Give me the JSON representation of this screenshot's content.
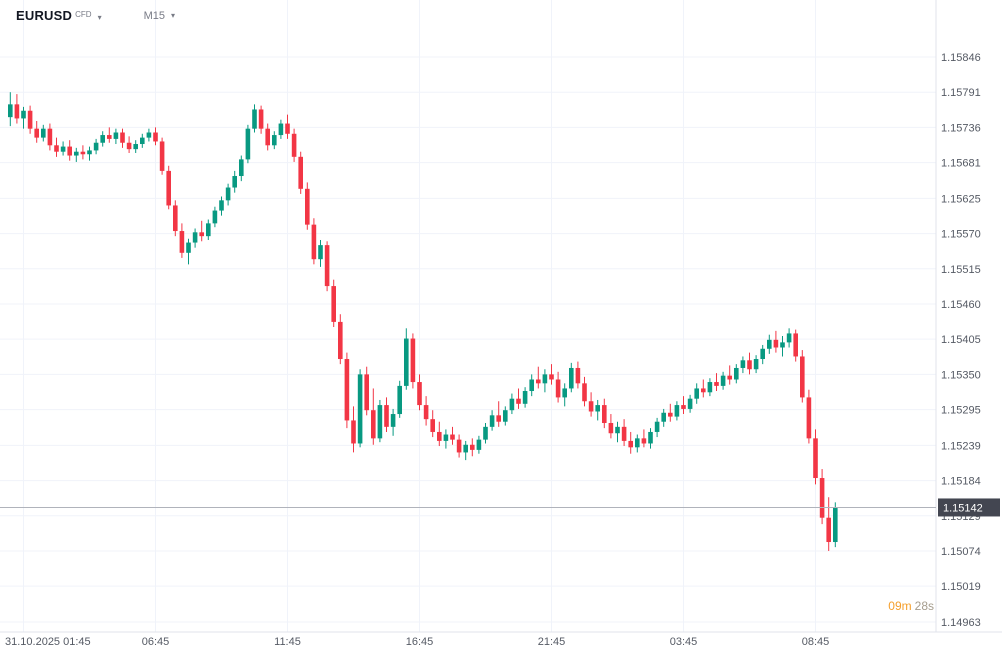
{
  "symbol_bar": {
    "symbol": "EURUSD",
    "instrument_type": "CFD",
    "timeframe": "M15"
  },
  "last_price": {
    "value": "1.15142",
    "badge_color": "#434651"
  },
  "countdown": {
    "minutes": "09m",
    "seconds": "28s"
  },
  "colors": {
    "up": "#089981",
    "down": "#f23645",
    "grid": "#f0f3fa",
    "axis_text": "#555a64",
    "axis_border": "#e0e3eb",
    "price_line": "#b0b3bb",
    "badge_text": "#ffffff"
  },
  "chart_data": {
    "type": "candlestick",
    "title": "EURUSD CFD M15",
    "symbol": "EURUSD",
    "interval": "M15",
    "grid": true,
    "price_range": [
      1.14963,
      1.15846
    ],
    "last_price": 1.15142,
    "y_ticks": [
      1.15846,
      1.15791,
      1.15736,
      1.15681,
      1.15625,
      1.1557,
      1.15515,
      1.1546,
      1.15405,
      1.1535,
      1.15295,
      1.15239,
      1.15184,
      1.15129,
      1.15074,
      1.15019,
      1.14963
    ],
    "y_tick_labels": [
      "1.15846",
      "1.15791",
      "1.15736",
      "1.15681",
      "1.15625",
      "1.15570",
      "1.15515",
      "1.15460",
      "1.15405",
      "1.15350",
      "1.15295",
      "1.15239",
      "1.15184",
      "1.15129",
      "1.15074",
      "1.15019",
      "1.14963"
    ],
    "x_tick_indices": [
      2,
      22,
      42,
      62,
      82,
      102,
      122
    ],
    "x_tick_labels": [
      "31.10.2025 01:45",
      "06:45",
      "11:45",
      "16:45",
      "21:45",
      "03:45",
      "08:45"
    ],
    "candles": [
      [
        1.15752,
        1.15791,
        1.15738,
        1.15772
      ],
      [
        1.15772,
        1.15788,
        1.15742,
        1.1575
      ],
      [
        1.1575,
        1.15768,
        1.15734,
        1.15762
      ],
      [
        1.15762,
        1.1577,
        1.15726,
        1.15734
      ],
      [
        1.15734,
        1.15746,
        1.15712,
        1.1572
      ],
      [
        1.1572,
        1.1574,
        1.15714,
        1.15734
      ],
      [
        1.15734,
        1.15742,
        1.157,
        1.15708
      ],
      [
        1.15708,
        1.1572,
        1.1569,
        1.15698
      ],
      [
        1.15698,
        1.15714,
        1.15692,
        1.15706
      ],
      [
        1.15706,
        1.15716,
        1.15684,
        1.15692
      ],
      [
        1.15692,
        1.15704,
        1.15682,
        1.15698
      ],
      [
        1.15698,
        1.15708,
        1.15686,
        1.15694
      ],
      [
        1.15694,
        1.15706,
        1.15684,
        1.157
      ],
      [
        1.157,
        1.15718,
        1.15694,
        1.15712
      ],
      [
        1.15712,
        1.1573,
        1.15706,
        1.15724
      ],
      [
        1.15724,
        1.15736,
        1.15712,
        1.15718
      ],
      [
        1.15718,
        1.15734,
        1.1571,
        1.15728
      ],
      [
        1.15728,
        1.15734,
        1.15704,
        1.15712
      ],
      [
        1.15712,
        1.15722,
        1.15696,
        1.15702
      ],
      [
        1.15702,
        1.15716,
        1.15696,
        1.1571
      ],
      [
        1.1571,
        1.15726,
        1.15704,
        1.1572
      ],
      [
        1.1572,
        1.15734,
        1.15714,
        1.15728
      ],
      [
        1.15728,
        1.15736,
        1.15708,
        1.15714
      ],
      [
        1.15714,
        1.1572,
        1.15662,
        1.15668
      ],
      [
        1.15668,
        1.15676,
        1.15608,
        1.15614
      ],
      [
        1.15614,
        1.15622,
        1.15566,
        1.15574
      ],
      [
        1.15574,
        1.15586,
        1.15532,
        1.1554
      ],
      [
        1.1554,
        1.15562,
        1.15522,
        1.15556
      ],
      [
        1.15556,
        1.15578,
        1.15548,
        1.15572
      ],
      [
        1.15572,
        1.1559,
        1.15558,
        1.15566
      ],
      [
        1.15566,
        1.15592,
        1.1556,
        1.15586
      ],
      [
        1.15586,
        1.15612,
        1.1558,
        1.15606
      ],
      [
        1.15606,
        1.15628,
        1.15598,
        1.15622
      ],
      [
        1.15622,
        1.15648,
        1.15614,
        1.15642
      ],
      [
        1.15642,
        1.15668,
        1.15634,
        1.1566
      ],
      [
        1.1566,
        1.15692,
        1.15652,
        1.15686
      ],
      [
        1.15686,
        1.1574,
        1.1568,
        1.15734
      ],
      [
        1.15734,
        1.15772,
        1.15728,
        1.15764
      ],
      [
        1.15764,
        1.1577,
        1.15726,
        1.15734
      ],
      [
        1.15734,
        1.15742,
        1.157,
        1.15708
      ],
      [
        1.15708,
        1.1573,
        1.15702,
        1.15724
      ],
      [
        1.15724,
        1.15748,
        1.15718,
        1.15742
      ],
      [
        1.15742,
        1.15756,
        1.15718,
        1.15726
      ],
      [
        1.15726,
        1.15734,
        1.15682,
        1.1569
      ],
      [
        1.1569,
        1.15698,
        1.15632,
        1.1564
      ],
      [
        1.1564,
        1.1565,
        1.15576,
        1.15584
      ],
      [
        1.15584,
        1.15594,
        1.15522,
        1.1553
      ],
      [
        1.1553,
        1.1556,
        1.15518,
        1.15552
      ],
      [
        1.15552,
        1.15558,
        1.1548,
        1.15488
      ],
      [
        1.15488,
        1.15498,
        1.15424,
        1.15432
      ],
      [
        1.15432,
        1.15444,
        1.15366,
        1.15374
      ],
      [
        1.15374,
        1.15384,
        1.15266,
        1.15278
      ],
      [
        1.15278,
        1.153,
        1.15228,
        1.15242
      ],
      [
        1.15242,
        1.15358,
        1.15236,
        1.1535
      ],
      [
        1.1535,
        1.15362,
        1.15286,
        1.15294
      ],
      [
        1.15294,
        1.15328,
        1.1524,
        1.1525
      ],
      [
        1.1525,
        1.1531,
        1.15244,
        1.15302
      ],
      [
        1.15302,
        1.15314,
        1.1526,
        1.15268
      ],
      [
        1.15268,
        1.15296,
        1.15254,
        1.15288
      ],
      [
        1.15288,
        1.1534,
        1.15282,
        1.15332
      ],
      [
        1.15332,
        1.15422,
        1.15326,
        1.15406
      ],
      [
        1.15406,
        1.15414,
        1.15328,
        1.15338
      ],
      [
        1.15338,
        1.1535,
        1.15294,
        1.15302
      ],
      [
        1.15302,
        1.15316,
        1.1527,
        1.1528
      ],
      [
        1.1528,
        1.15294,
        1.15252,
        1.1526
      ],
      [
        1.1526,
        1.15276,
        1.15238,
        1.15246
      ],
      [
        1.15246,
        1.15264,
        1.15234,
        1.15256
      ],
      [
        1.15256,
        1.15268,
        1.1524,
        1.15248
      ],
      [
        1.15248,
        1.15256,
        1.1522,
        1.15228
      ],
      [
        1.15228,
        1.15246,
        1.15216,
        1.1524
      ],
      [
        1.1524,
        1.1525,
        1.15222,
        1.15232
      ],
      [
        1.15232,
        1.15254,
        1.15226,
        1.15248
      ],
      [
        1.15248,
        1.15274,
        1.15242,
        1.15268
      ],
      [
        1.15268,
        1.15294,
        1.15262,
        1.15286
      ],
      [
        1.15286,
        1.15308,
        1.15268,
        1.15276
      ],
      [
        1.15276,
        1.153,
        1.1527,
        1.15294
      ],
      [
        1.15294,
        1.1532,
        1.15288,
        1.15312
      ],
      [
        1.15312,
        1.15328,
        1.15296,
        1.15304
      ],
      [
        1.15304,
        1.1533,
        1.15298,
        1.15324
      ],
      [
        1.15324,
        1.1535,
        1.15316,
        1.15342
      ],
      [
        1.15342,
        1.15362,
        1.15328,
        1.15336
      ],
      [
        1.15336,
        1.15358,
        1.15322,
        1.1535
      ],
      [
        1.1535,
        1.15366,
        1.15334,
        1.15342
      ],
      [
        1.15342,
        1.15354,
        1.15306,
        1.15314
      ],
      [
        1.15314,
        1.15336,
        1.153,
        1.15328
      ],
      [
        1.15328,
        1.15368,
        1.15322,
        1.1536
      ],
      [
        1.1536,
        1.1537,
        1.15328,
        1.15336
      ],
      [
        1.15336,
        1.15346,
        1.153,
        1.15308
      ],
      [
        1.15308,
        1.15322,
        1.15284,
        1.15292
      ],
      [
        1.15292,
        1.1531,
        1.15278,
        1.15302
      ],
      [
        1.15302,
        1.15312,
        1.15266,
        1.15274
      ],
      [
        1.15274,
        1.15288,
        1.1525,
        1.15258
      ],
      [
        1.15258,
        1.15276,
        1.15244,
        1.15268
      ],
      [
        1.15268,
        1.1528,
        1.15238,
        1.15246
      ],
      [
        1.15246,
        1.1526,
        1.15226,
        1.15236
      ],
      [
        1.15236,
        1.15256,
        1.15228,
        1.1525
      ],
      [
        1.1525,
        1.15264,
        1.15236,
        1.15242
      ],
      [
        1.15242,
        1.15266,
        1.15234,
        1.1526
      ],
      [
        1.1526,
        1.15282,
        1.15252,
        1.15276
      ],
      [
        1.15276,
        1.15296,
        1.15268,
        1.1529
      ],
      [
        1.1529,
        1.15304,
        1.15276,
        1.15284
      ],
      [
        1.15284,
        1.15308,
        1.15278,
        1.15302
      ],
      [
        1.15302,
        1.15316,
        1.15288,
        1.15296
      ],
      [
        1.15296,
        1.15318,
        1.1529,
        1.15312
      ],
      [
        1.15312,
        1.15336,
        1.15304,
        1.15328
      ],
      [
        1.15328,
        1.15342,
        1.15314,
        1.15322
      ],
      [
        1.15322,
        1.15344,
        1.15316,
        1.15338
      ],
      [
        1.15338,
        1.15352,
        1.15324,
        1.15332
      ],
      [
        1.15332,
        1.15354,
        1.15326,
        1.15348
      ],
      [
        1.15348,
        1.15364,
        1.15334,
        1.15342
      ],
      [
        1.15342,
        1.15366,
        1.15336,
        1.1536
      ],
      [
        1.1536,
        1.15378,
        1.15352,
        1.15372
      ],
      [
        1.15372,
        1.15384,
        1.1535,
        1.15358
      ],
      [
        1.15358,
        1.1538,
        1.15352,
        1.15374
      ],
      [
        1.15374,
        1.15396,
        1.15366,
        1.1539
      ],
      [
        1.1539,
        1.15412,
        1.15382,
        1.15404
      ],
      [
        1.15404,
        1.15418,
        1.15384,
        1.15392
      ],
      [
        1.15392,
        1.1541,
        1.15378,
        1.154
      ],
      [
        1.154,
        1.15422,
        1.15392,
        1.15414
      ],
      [
        1.15414,
        1.1542,
        1.1537,
        1.15378
      ],
      [
        1.15378,
        1.15388,
        1.15306,
        1.15314
      ],
      [
        1.15314,
        1.15326,
        1.15242,
        1.1525
      ],
      [
        1.1525,
        1.15264,
        1.15178,
        1.15188
      ],
      [
        1.15188,
        1.15202,
        1.15116,
        1.15126
      ],
      [
        1.15126,
        1.15158,
        1.15074,
        1.15088
      ],
      [
        1.15088,
        1.1515,
        1.1508,
        1.15142
      ]
    ]
  }
}
